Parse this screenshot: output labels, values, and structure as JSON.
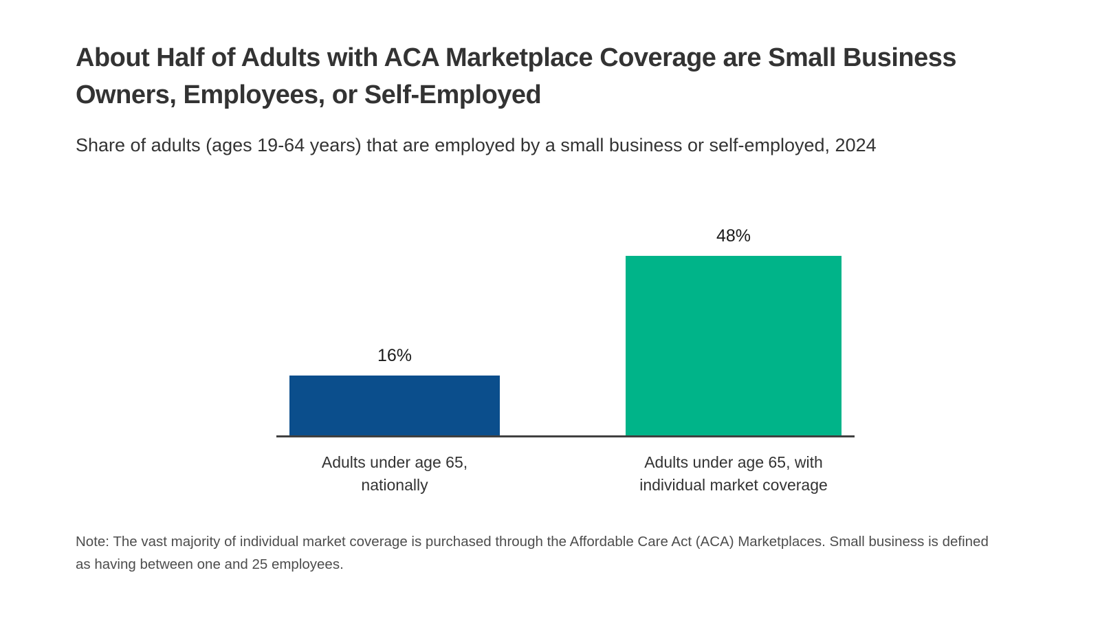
{
  "chart_data": {
    "type": "bar",
    "title": "About Half of Adults with ACA Marketplace Coverage are Small Business Owners, Employees, or Self-Employed",
    "subtitle": "Share of adults (ages 19-64 years) that are employed by a small business or self-employed, 2024",
    "categories": [
      "Adults under age 65, nationally",
      "Adults under age 65, with individual market coverage"
    ],
    "values": [
      16,
      48
    ],
    "value_labels": [
      "16%",
      "48%"
    ],
    "bar_colors": [
      "#0b4e8c",
      "#00b489"
    ],
    "ylim": [
      0,
      50
    ],
    "xlabel": "",
    "ylabel": "",
    "grid": false,
    "legend_position": "none",
    "axis_line_color": "#404040",
    "note": "Note: The vast majority of individual market coverage is purchased through the Affordable Care Act (ACA) Marketplaces. Small business is defined as having between one and 25 employees."
  }
}
